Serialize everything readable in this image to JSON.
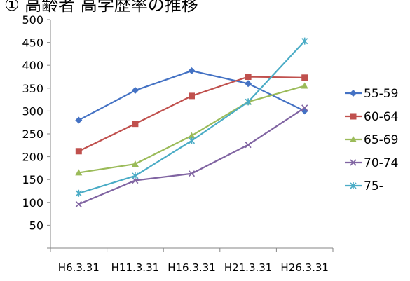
{
  "chart_data": {
    "type": "line",
    "title": "① 高齢者 高学歴率の推移",
    "categories": [
      "H6.3.31",
      "H11.3.31",
      "H16.3.31",
      "H21.3.31",
      "H26.3.31"
    ],
    "ylim": [
      0,
      500
    ],
    "yticks": [
      50,
      100,
      150,
      200,
      250,
      300,
      350,
      400,
      450,
      500
    ],
    "ytick_labels": [
      "50",
      "100",
      "150",
      "200",
      "250",
      "300",
      "350",
      "400",
      "450",
      "500"
    ],
    "grid": false,
    "legend": "right",
    "series": [
      {
        "name": "55-59",
        "color": "#4472C4",
        "marker": "diamond",
        "values": [
          280,
          345,
          388,
          360,
          300
        ]
      },
      {
        "name": "60-64",
        "color": "#C0504D",
        "marker": "square",
        "values": [
          212,
          272,
          333,
          375,
          373
        ]
      },
      {
        "name": "65-69",
        "color": "#9BBB59",
        "marker": "triangle",
        "values": [
          165,
          184,
          246,
          320,
          355
        ]
      },
      {
        "name": "70-74",
        "color": "#8064A2",
        "marker": "x",
        "values": [
          96,
          148,
          163,
          226,
          307
        ]
      },
      {
        "name": "75-",
        "color": "#4BACC6",
        "marker": "star",
        "values": [
          120,
          158,
          235,
          320,
          453
        ]
      }
    ]
  }
}
